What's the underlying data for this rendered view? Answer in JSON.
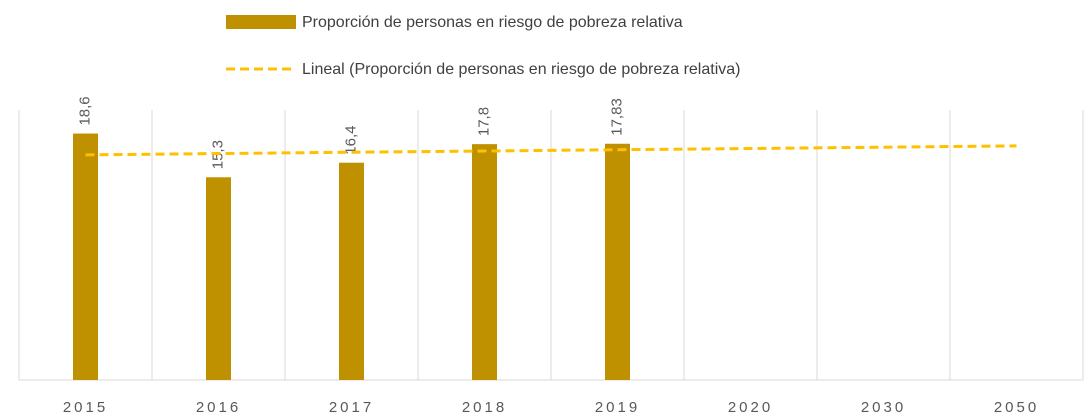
{
  "chart_data": {
    "type": "bar",
    "categories": [
      "2015",
      "2016",
      "2017",
      "2018",
      "2019",
      "2020",
      "2030",
      "2050"
    ],
    "series": [
      {
        "name": "Proporción de personas en riesgo de pobreza relativa",
        "type": "bar",
        "color": "#bf9000",
        "values": [
          18.6,
          15.3,
          16.4,
          17.8,
          17.83,
          null,
          null,
          null
        ],
        "value_labels": [
          "18,6",
          "15,3",
          "16,4",
          "17,8",
          "17,83",
          null,
          null,
          null
        ]
      },
      {
        "name": "Lineal (Proporción de personas en riesgo de pobreza relativa)",
        "type": "line",
        "color": "#ffc000",
        "dashed": true,
        "values": [
          16.99,
          17.09,
          17.19,
          17.28,
          17.38,
          17.47,
          17.57,
          17.67
        ]
      }
    ],
    "ylim": [
      0,
      20
    ],
    "grid": "vertical",
    "legend": "top"
  }
}
